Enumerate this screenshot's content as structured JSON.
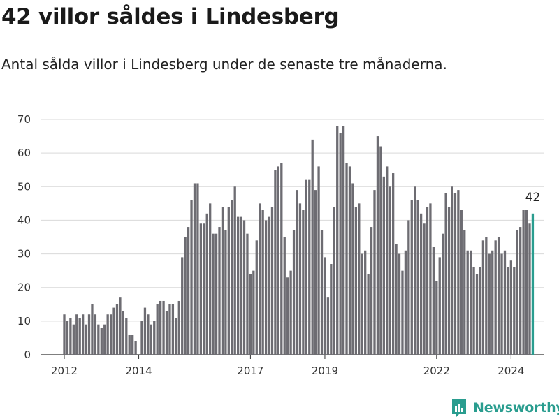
{
  "title": "42 villor såldes i Lindesberg",
  "subtitle": "Antal sålda villor i Lindesberg under de senaste tre månaderna.",
  "brand": {
    "name": "Newsworthy",
    "icon": "newsworthy-logo-icon",
    "color": "#2a9d8f"
  },
  "chart_data": {
    "type": "bar",
    "title": "42 villor såldes i Lindesberg",
    "subtitle": "Antal sålda villor i Lindesberg under de senaste tre månaderna.",
    "xlabel": "",
    "ylabel": "",
    "ylim": [
      0,
      70
    ],
    "yticks": [
      "0",
      "10",
      "20",
      "30",
      "40",
      "50",
      "60",
      "70"
    ],
    "xticks": [
      {
        "label": "2012",
        "index": 0
      },
      {
        "label": "2014",
        "index": 24
      },
      {
        "label": "2017",
        "index": 60
      },
      {
        "label": "2019",
        "index": 84
      },
      {
        "label": "2022",
        "index": 120
      },
      {
        "label": "2024",
        "index": 144
      }
    ],
    "grid": true,
    "bar_color": "#6d6c72",
    "highlight_color": "#2a9d8f",
    "highlight_index": 151,
    "highlight_label": "42",
    "values": [
      12,
      10,
      11,
      9,
      12,
      11,
      12,
      9,
      12,
      15,
      12,
      9,
      8,
      9,
      12,
      12,
      14,
      15,
      17,
      13,
      11,
      6,
      6,
      4,
      0,
      10,
      14,
      12,
      9,
      10,
      15,
      16,
      16,
      13,
      15,
      15,
      11,
      16,
      29,
      35,
      38,
      46,
      51,
      51,
      39,
      39,
      42,
      45,
      36,
      36,
      38,
      44,
      37,
      44,
      46,
      50,
      41,
      41,
      40,
      36,
      24,
      25,
      34,
      45,
      43,
      40,
      41,
      44,
      55,
      56,
      57,
      35,
      23,
      25,
      37,
      49,
      45,
      43,
      52,
      52,
      64,
      49,
      56,
      37,
      29,
      17,
      27,
      44,
      68,
      66,
      68,
      57,
      56,
      51,
      44,
      45,
      30,
      31,
      24,
      38,
      49,
      65,
      62,
      53,
      56,
      50,
      54,
      33,
      30,
      25,
      31,
      40,
      46,
      50,
      46,
      42,
      39,
      44,
      45,
      32,
      22,
      29,
      36,
      48,
      44,
      50,
      48,
      49,
      43,
      37,
      31,
      31,
      26,
      24,
      26,
      34,
      35,
      30,
      31,
      34,
      35,
      30,
      31,
      26,
      28,
      26,
      37,
      38,
      43,
      43,
      39,
      42
    ]
  }
}
